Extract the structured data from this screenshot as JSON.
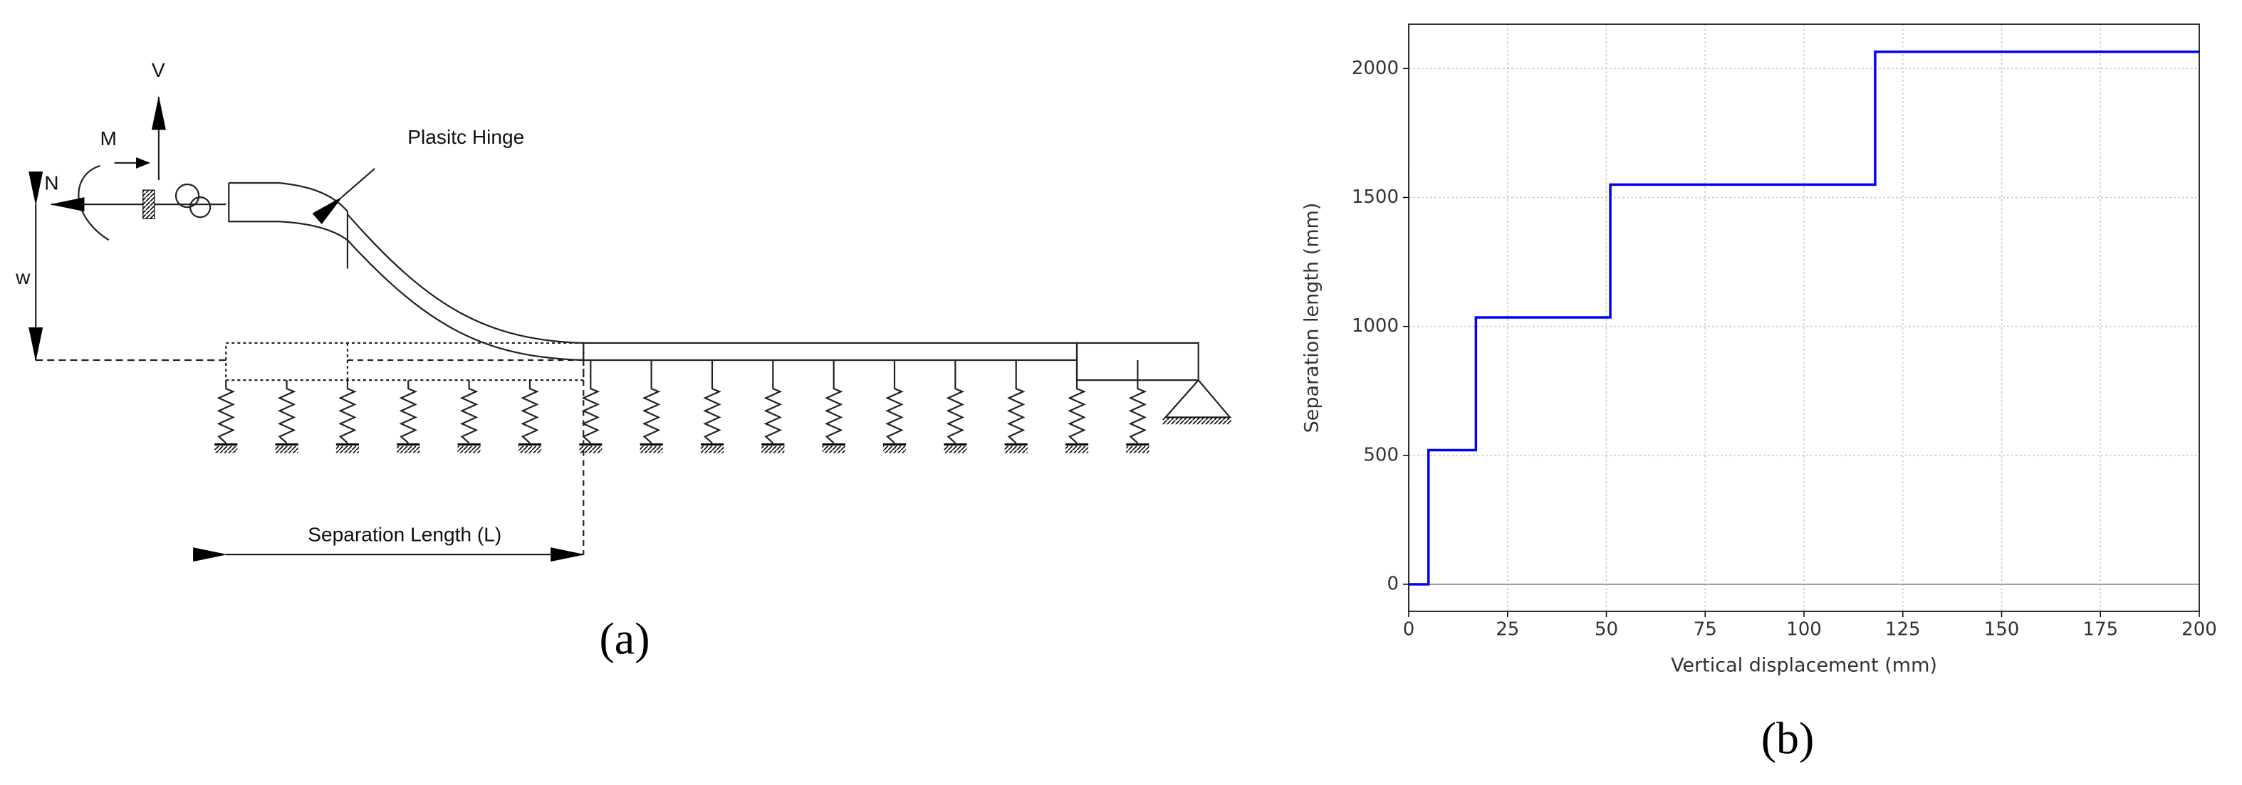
{
  "diagram": {
    "labels": {
      "v": "V",
      "m": "M",
      "n": "N",
      "w": "w",
      "hinge": "Plasitc Hinge",
      "separation": "Separation Length (L)"
    },
    "caption": "(a)"
  },
  "chart_data": {
    "type": "line",
    "caption": "(b)",
    "x_label": "Vertical displacement (mm)",
    "y_label": "Separation length (mm)",
    "x": [
      0,
      5,
      5,
      17,
      17,
      51,
      51,
      118,
      118,
      200
    ],
    "values": [
      0,
      0,
      520,
      520,
      1035,
      1035,
      1550,
      1550,
      2065,
      2065
    ],
    "color": "#0000ff",
    "xlim": [
      0,
      200
    ],
    "ylim": [
      -105,
      2172
    ],
    "xticks": [
      0,
      25,
      50,
      75,
      100,
      125,
      150,
      175,
      200
    ],
    "yticks": [
      0,
      500,
      1000,
      1500,
      2000
    ],
    "grid": true
  }
}
